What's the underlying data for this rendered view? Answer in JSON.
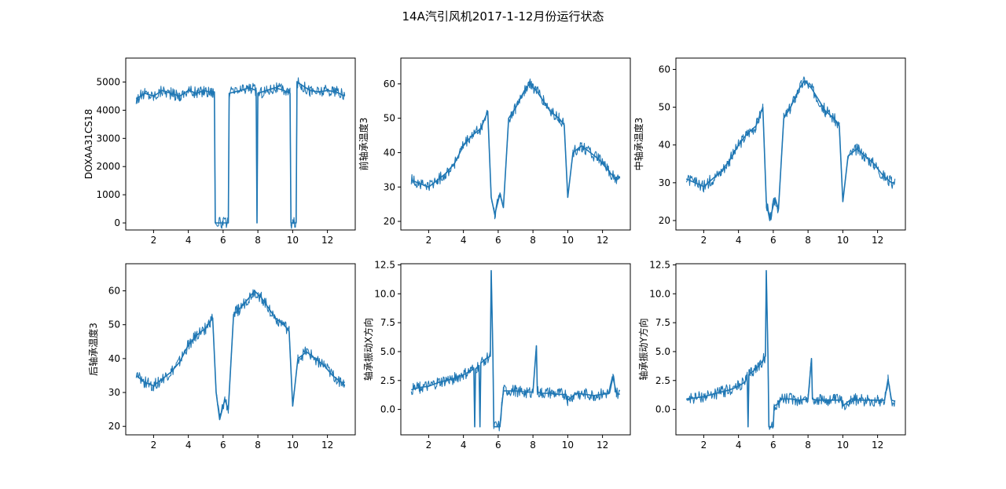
{
  "figure": {
    "title": "14A汽引风机2017-1-12月份运行状态",
    "line_color": "#1f77b4"
  },
  "chart_data": [
    {
      "type": "line",
      "ylabel": "DOXAA31CS18",
      "xlim": [
        0.4,
        13.6
      ],
      "ylim": [
        -250,
        5850
      ],
      "xticks": [
        2,
        4,
        6,
        8,
        10,
        12
      ],
      "yticks": [
        0,
        1000,
        2000,
        3000,
        4000,
        5000
      ],
      "x": [
        1.0,
        1.5,
        2.0,
        2.5,
        3.0,
        3.5,
        4.0,
        4.5,
        4.9,
        5.2,
        5.5,
        5.55,
        6.0,
        6.3,
        6.35,
        7.0,
        7.5,
        7.9,
        7.95,
        8.0,
        8.5,
        9.0,
        9.5,
        9.85,
        9.9,
        10.0,
        10.2,
        10.25,
        10.5,
        11.0,
        11.5,
        12.0,
        12.5,
        13.0
      ],
      "y": [
        4400,
        4600,
        4500,
        4700,
        4600,
        4500,
        4700,
        4600,
        4700,
        4650,
        4650,
        0,
        0,
        0,
        4600,
        4700,
        4800,
        4700,
        0,
        4600,
        4700,
        4800,
        4700,
        4600,
        0,
        0,
        0,
        5000,
        4900,
        4700,
        4650,
        4700,
        4650,
        4500
      ]
    },
    {
      "type": "line",
      "ylabel": "前轴承温度3",
      "xlim": [
        0.4,
        13.6
      ],
      "ylim": [
        17.5,
        67.5
      ],
      "xticks": [
        2,
        4,
        6,
        8,
        10,
        12
      ],
      "yticks": [
        20,
        30,
        40,
        50,
        60
      ],
      "x": [
        1.0,
        1.5,
        2.0,
        2.5,
        3.0,
        3.5,
        4.0,
        4.5,
        5.0,
        5.4,
        5.6,
        5.8,
        6.1,
        6.3,
        6.6,
        7.0,
        7.5,
        7.8,
        8.2,
        8.6,
        9.0,
        9.5,
        9.8,
        10.0,
        10.3,
        10.8,
        11.3,
        11.8,
        12.3,
        12.8,
        13.0
      ],
      "y": [
        32,
        31,
        30,
        32,
        34,
        37,
        42,
        45,
        47,
        52,
        27,
        22,
        28,
        24,
        50,
        53,
        58,
        60,
        58,
        55,
        52,
        50,
        48,
        27,
        40,
        42,
        40,
        38,
        35,
        32,
        33
      ]
    },
    {
      "type": "line",
      "ylabel": "中轴承温度3",
      "xlim": [
        0.4,
        13.6
      ],
      "ylim": [
        17.5,
        63
      ],
      "xticks": [
        2,
        4,
        6,
        8,
        10,
        12
      ],
      "yticks": [
        20,
        30,
        40,
        50,
        60
      ],
      "x": [
        1.0,
        1.5,
        2.0,
        2.5,
        3.0,
        3.5,
        4.0,
        4.5,
        5.0,
        5.4,
        5.6,
        5.8,
        6.1,
        6.3,
        6.6,
        7.0,
        7.5,
        7.8,
        8.2,
        8.6,
        9.0,
        9.5,
        9.8,
        10.0,
        10.3,
        10.8,
        11.3,
        11.8,
        12.3,
        12.8,
        13.0
      ],
      "y": [
        31,
        30,
        29,
        31,
        33,
        36,
        40,
        43,
        45,
        50,
        25,
        20,
        26,
        23,
        47,
        50,
        55,
        57,
        55,
        52,
        49,
        47,
        45,
        25,
        37,
        39,
        37,
        35,
        32,
        30,
        30
      ]
    },
    {
      "type": "line",
      "ylabel": "后轴承温度3",
      "xlim": [
        0.4,
        13.6
      ],
      "ylim": [
        17.5,
        68
      ],
      "xticks": [
        2,
        4,
        6,
        8,
        10,
        12
      ],
      "yticks": [
        20,
        30,
        40,
        50,
        60
      ],
      "x": [
        1.0,
        1.5,
        2.0,
        2.5,
        3.0,
        3.5,
        4.0,
        4.5,
        5.0,
        5.4,
        5.6,
        5.8,
        6.1,
        6.3,
        6.6,
        7.0,
        7.5,
        7.8,
        8.2,
        8.6,
        9.0,
        9.5,
        9.8,
        10.0,
        10.3,
        10.8,
        11.3,
        11.8,
        12.3,
        12.8,
        13.0
      ],
      "y": [
        35,
        33,
        32,
        34,
        36,
        39,
        44,
        47,
        49,
        52,
        30,
        22,
        28,
        25,
        53,
        55,
        58,
        60,
        58,
        55,
        52,
        50,
        48,
        26,
        40,
        42,
        40,
        38,
        35,
        33,
        33
      ]
    },
    {
      "type": "line",
      "ylabel": "轴承振动X方向",
      "xlim": [
        0.4,
        13.6
      ],
      "ylim": [
        -2.2,
        12.6
      ],
      "xticks": [
        2,
        4,
        6,
        8,
        10,
        12
      ],
      "yticks": [
        0.0,
        2.5,
        5.0,
        7.5,
        10.0,
        12.5
      ],
      "x": [
        1.0,
        1.5,
        2.0,
        2.5,
        3.0,
        3.5,
        4.0,
        4.4,
        4.6,
        4.65,
        4.7,
        4.9,
        4.95,
        5.0,
        5.3,
        5.55,
        5.6,
        5.7,
        5.75,
        6.1,
        6.2,
        6.3,
        7.0,
        7.5,
        8.0,
        8.2,
        8.25,
        8.5,
        9.0,
        9.5,
        9.9,
        10.0,
        10.5,
        11.0,
        11.5,
        12.0,
        12.4,
        12.6,
        12.8,
        13.0
      ],
      "y": [
        1.7,
        1.9,
        2.0,
        2.3,
        2.5,
        2.7,
        3.0,
        3.3,
        3.5,
        -1.5,
        3.5,
        3.8,
        -1.5,
        4.0,
        4.4,
        4.6,
        12.0,
        4.5,
        -1.5,
        -1.5,
        0.2,
        1.6,
        1.6,
        1.5,
        1.5,
        5.5,
        1.5,
        1.4,
        1.4,
        1.3,
        1.3,
        0.8,
        1.4,
        1.3,
        1.2,
        1.3,
        1.4,
        2.8,
        1.4,
        1.3
      ]
    },
    {
      "type": "line",
      "ylabel": "轴承振动Y方向",
      "xlim": [
        0.4,
        13.6
      ],
      "ylim": [
        -2.2,
        12.6
      ],
      "xticks": [
        2,
        4,
        6,
        8,
        10,
        12
      ],
      "yticks": [
        0.0,
        2.5,
        5.0,
        7.5,
        10.0,
        12.5
      ],
      "x": [
        1.0,
        1.5,
        2.0,
        2.5,
        3.0,
        3.5,
        4.0,
        4.4,
        4.5,
        4.55,
        4.6,
        5.0,
        5.3,
        5.55,
        5.6,
        5.7,
        5.75,
        6.0,
        6.05,
        6.3,
        6.4,
        7.0,
        7.5,
        8.0,
        8.2,
        8.25,
        8.5,
        9.0,
        9.5,
        9.9,
        10.0,
        10.5,
        11.0,
        11.5,
        12.0,
        12.4,
        12.6,
        12.8,
        13.0
      ],
      "y": [
        0.9,
        1.0,
        1.1,
        1.3,
        1.5,
        1.7,
        2.0,
        2.4,
        3.0,
        -1.5,
        3.0,
        3.5,
        4.0,
        4.6,
        12.0,
        4.4,
        -1.5,
        -1.5,
        0.3,
        0.5,
        0.9,
        0.9,
        0.8,
        0.9,
        4.4,
        0.9,
        0.8,
        0.8,
        0.8,
        0.8,
        0.3,
        0.9,
        0.8,
        0.8,
        0.8,
        0.8,
        2.6,
        0.8,
        0.7
      ]
    }
  ]
}
